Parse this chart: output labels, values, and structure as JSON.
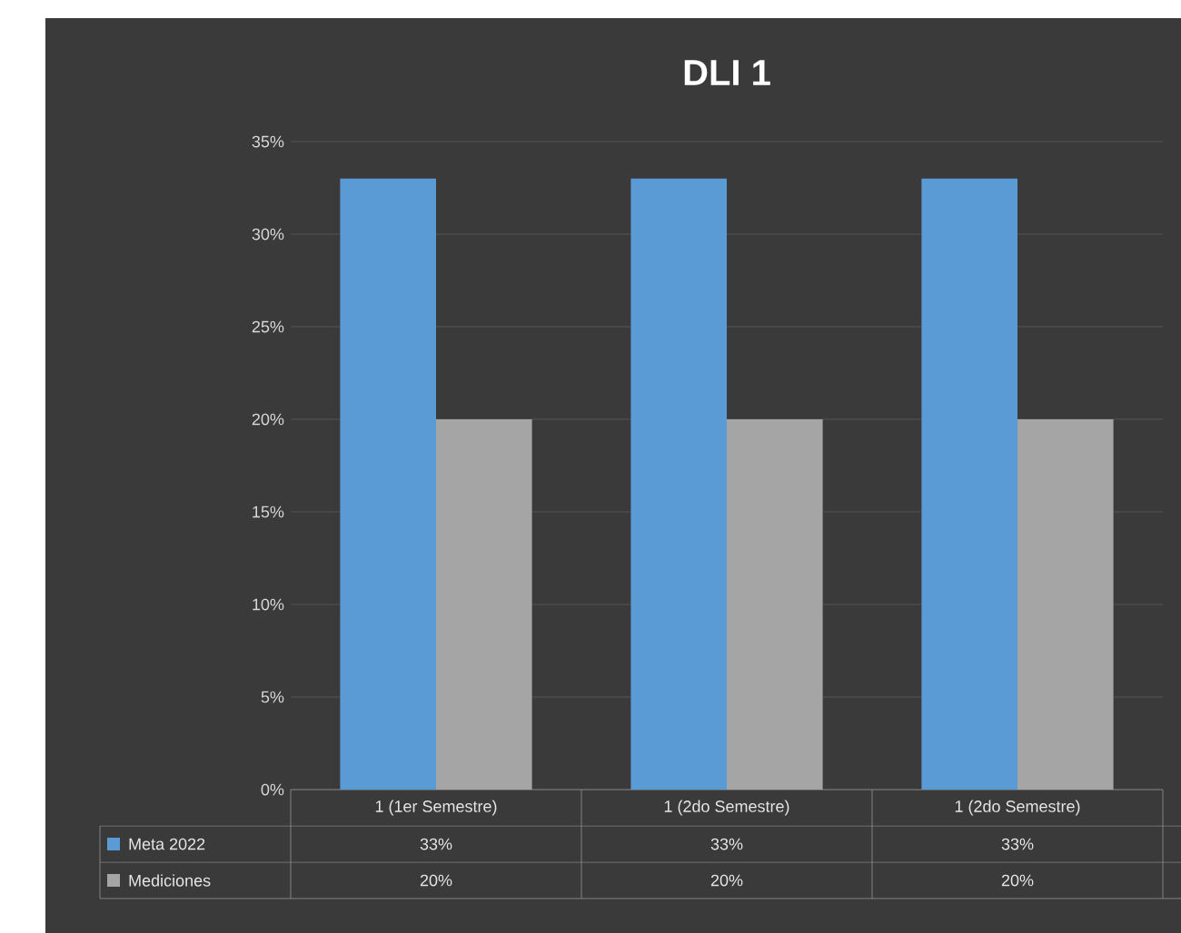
{
  "chart_data": {
    "type": "bar",
    "title": "DLI 1",
    "categories": [
      "1 (1er Semestre)",
      "1 (2do Semestre)",
      "1 (2do Semestre)"
    ],
    "series": [
      {
        "name": "Meta 2022",
        "color": "#5b9bd5",
        "values": [
          33,
          33,
          33
        ],
        "value_labels": [
          "33%",
          "33%",
          "33%"
        ]
      },
      {
        "name": "Mediciones",
        "color": "#a5a5a5",
        "values": [
          20,
          20,
          20
        ],
        "value_labels": [
          "20%",
          "20%",
          "20%"
        ]
      }
    ],
    "ylim": [
      0,
      35
    ],
    "yticks": [
      {
        "value": 0,
        "label": "0%"
      },
      {
        "value": 5,
        "label": "5%"
      },
      {
        "value": 10,
        "label": "10%"
      },
      {
        "value": 15,
        "label": "15%"
      },
      {
        "value": 20,
        "label": "20%"
      },
      {
        "value": 25,
        "label": "25%"
      },
      {
        "value": 30,
        "label": "30%"
      },
      {
        "value": 35,
        "label": "35%"
      }
    ],
    "grid": "y",
    "legend": "bottom"
  }
}
